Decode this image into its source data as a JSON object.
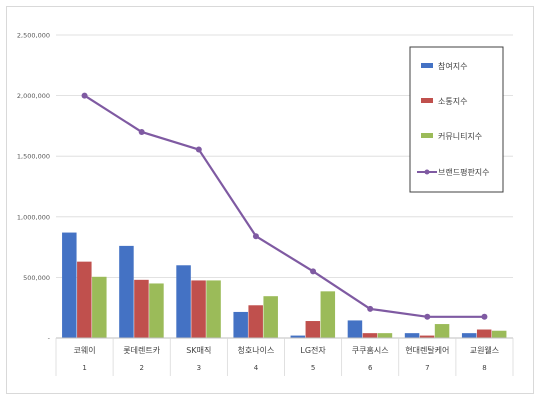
{
  "chart_data": {
    "type": "bar",
    "categories": [
      "코웨이",
      "롯데렌트카",
      "SK매직",
      "청호나이스",
      "LG전자",
      "쿠쿠홈시스",
      "현대렌탈케어",
      "교원웰스"
    ],
    "category_index": [
      "1",
      "2",
      "3",
      "4",
      "5",
      "6",
      "7",
      "8"
    ],
    "series": [
      {
        "name": "참여지수",
        "kind": "bar",
        "color": "#4472c4",
        "values": [
          870000,
          760000,
          600000,
          215000,
          20000,
          145000,
          40000,
          40000
        ]
      },
      {
        "name": "소통지수",
        "kind": "bar",
        "color": "#c0504d",
        "values": [
          630000,
          480000,
          475000,
          270000,
          140000,
          40000,
          20000,
          70000
        ]
      },
      {
        "name": "커뮤니티지수",
        "kind": "bar",
        "color": "#9bbb59",
        "values": [
          505000,
          450000,
          475000,
          345000,
          385000,
          40000,
          115000,
          60000
        ]
      },
      {
        "name": "브랜드평판지수",
        "kind": "line",
        "color": "#7f5aa2",
        "values": [
          2000000,
          1700000,
          1555000,
          840000,
          550000,
          240000,
          175000,
          175000
        ]
      }
    ],
    "y_ticks": [
      "2,500,000",
      "2,000,000",
      "1,500,000",
      "1,000,000",
      "500,000",
      "-"
    ],
    "ylim": [
      0,
      2500000
    ],
    "legend_position": "right",
    "grid": true
  }
}
